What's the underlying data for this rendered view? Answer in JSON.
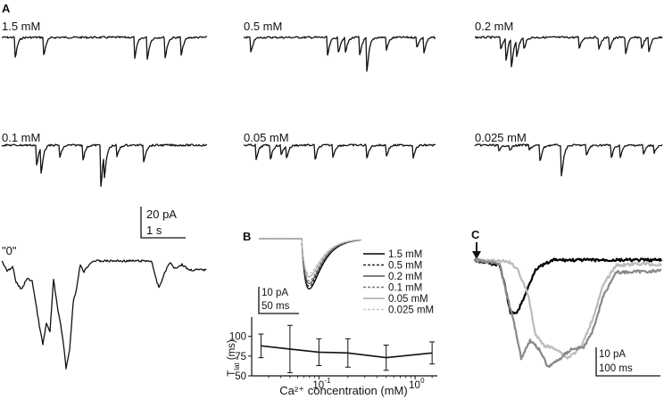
{
  "panel_a": {
    "letter": "A",
    "conditions": [
      "1.5 mM",
      "0.5 mM",
      "0.2 mM",
      "0.1 mM",
      "0.05 mM",
      "0.025 mM",
      "\"0\""
    ],
    "scale": {
      "amplitude": "20 pA",
      "time": "1 s"
    }
  },
  "panel_b": {
    "letter": "B",
    "legend": [
      "1.5 mM",
      "0.5 mM",
      "0.2 mM",
      "0.1 mM",
      "0.05 mM",
      "0.025 mM"
    ],
    "trace_colors": [
      "#000000",
      "#222222",
      "#555555",
      "#777777",
      "#aaaaaa",
      "#c8c8c8"
    ],
    "trace_depths": [
      0.95,
      0.9,
      0.85,
      0.8,
      0.72,
      0.66
    ],
    "scale": {
      "amplitude": "10 pA",
      "time": "50 ms"
    }
  },
  "panel_c": {
    "letter": "C",
    "trace_colors": [
      "#000000",
      "#bbbbbb",
      "#888888"
    ],
    "scale": {
      "amplitude": "10 pA",
      "time": "100 ms"
    }
  },
  "chart_data": {
    "type": "line",
    "xlabel": "Ca²⁺ concentration (mM)",
    "ylabel": "T",
    "ylabel_sub": "lat",
    "ylabel_unit": "(ms)",
    "x_scale": "log",
    "xlim": [
      0.02,
      1.7
    ],
    "ylim": [
      50,
      120
    ],
    "yticks": [
      50,
      75,
      100
    ],
    "xticks": [
      "10",
      "10",
      "10"
    ],
    "xtick_exponents": [
      "-1",
      "0",
      ""
    ],
    "x": [
      0.025,
      0.05,
      0.1,
      0.2,
      0.5,
      1.5
    ],
    "values": [
      88,
      84,
      80,
      79,
      73,
      79
    ],
    "errors": [
      15,
      30,
      17,
      18,
      16,
      14
    ]
  }
}
